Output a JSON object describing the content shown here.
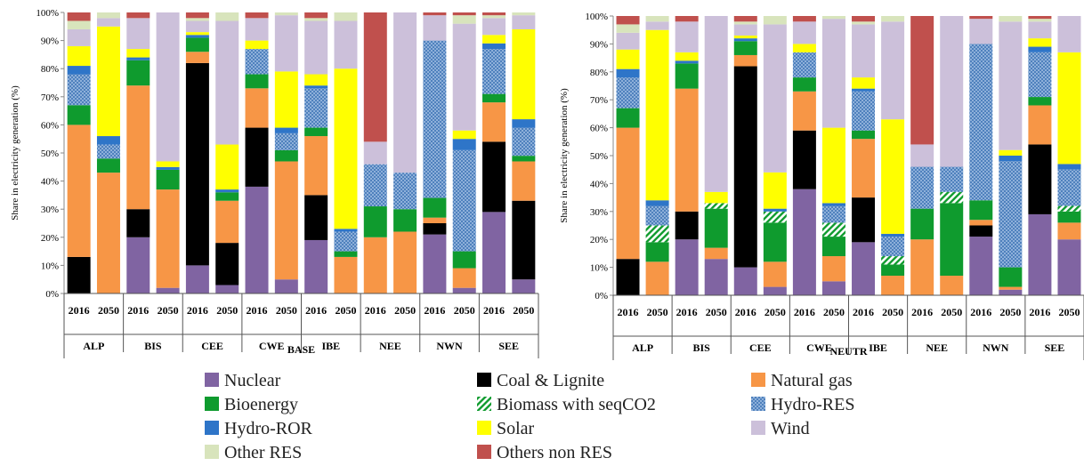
{
  "chart_data": {
    "type": "bar",
    "stacked": true,
    "ylabel": "Share in electricity generation (%)",
    "ylim": [
      0,
      100
    ],
    "y_ticks": [
      "0%",
      "10%",
      "20%",
      "30%",
      "40%",
      "50%",
      "60%",
      "70%",
      "80%",
      "90%",
      "100%"
    ],
    "legend_position": "bottom",
    "categories": [
      "2016",
      "2050",
      "2016",
      "2050",
      "2016",
      "2050",
      "2016",
      "2050",
      "2016",
      "2050",
      "2016",
      "2050",
      "2016",
      "2050",
      "2016",
      "2050"
    ],
    "groups": [
      "ALP",
      "BIS",
      "CEE",
      "CWE",
      "IBE",
      "NEE",
      "NWN",
      "SEE"
    ],
    "sources": [
      {
        "name": "Nuclear",
        "color": "#8064a2",
        "pattern": "none"
      },
      {
        "name": "Coal & Lignite",
        "color": "#000000",
        "pattern": "none"
      },
      {
        "name": "Natural gas",
        "color": "#f79646",
        "pattern": "none"
      },
      {
        "name": "Bioenergy",
        "color": "#0f9b2e",
        "pattern": "none"
      },
      {
        "name": "Biomass with seqCO2",
        "color": "#0f9b2e",
        "pattern": "diag"
      },
      {
        "name": "Hydro-RES",
        "color": "#4f81bd",
        "pattern": "dots"
      },
      {
        "name": "Hydro-ROR",
        "color": "#2e75c8",
        "pattern": "none"
      },
      {
        "name": "Solar",
        "color": "#ffff00",
        "pattern": "none"
      },
      {
        "name": "Wind",
        "color": "#ccc0da",
        "pattern": "none"
      },
      {
        "name": "Other RES",
        "color": "#d8e4bc",
        "pattern": "none"
      },
      {
        "name": "Others non RES",
        "color": "#c0504d",
        "pattern": "none"
      }
    ],
    "panels": [
      {
        "scenario": "BASE",
        "bars": [
          [
            0,
            13,
            47,
            7,
            0,
            11,
            3,
            7,
            6,
            3,
            3
          ],
          [
            0,
            0,
            43,
            5,
            0,
            5,
            3,
            39,
            3,
            2,
            0
          ],
          [
            20,
            10,
            44,
            9,
            0,
            0,
            1,
            3,
            11,
            0,
            2
          ],
          [
            2,
            0,
            35,
            7,
            0,
            0,
            1,
            2,
            53,
            0,
            0
          ],
          [
            10,
            72,
            4,
            5,
            0,
            0,
            1,
            1,
            4,
            1,
            2
          ],
          [
            3,
            15,
            15,
            3,
            0,
            0,
            1,
            16,
            44,
            3,
            0
          ],
          [
            38,
            21,
            14,
            5,
            0,
            9,
            0,
            3,
            8,
            0,
            2
          ],
          [
            5,
            0,
            42,
            4,
            0,
            6,
            2,
            20,
            20,
            1,
            0
          ],
          [
            19,
            16,
            21,
            3,
            0,
            14,
            1,
            4,
            19,
            1,
            2
          ],
          [
            0,
            0,
            13,
            2,
            0,
            7,
            1,
            57,
            17,
            3,
            0
          ],
          [
            0,
            0,
            20,
            11,
            0,
            15,
            0,
            0,
            8,
            0,
            46
          ],
          [
            0,
            0,
            22,
            8,
            0,
            13,
            0,
            0,
            57,
            0,
            0
          ],
          [
            21,
            4,
            2,
            7,
            0,
            56,
            0,
            0,
            9,
            0,
            1
          ],
          [
            2,
            0,
            7,
            6,
            0,
            36,
            4,
            3,
            38,
            3,
            1
          ],
          [
            29,
            25,
            14,
            3,
            0,
            16,
            2,
            3,
            6,
            1,
            1
          ],
          [
            5,
            28,
            14,
            2,
            0,
            10,
            3,
            32,
            5,
            1,
            0
          ]
        ]
      },
      {
        "scenario": "NEUTR",
        "bars": [
          [
            0,
            13,
            47,
            7,
            0,
            11,
            3,
            7,
            6,
            3,
            3
          ],
          [
            0,
            0,
            12,
            7,
            6,
            7,
            2,
            61,
            3,
            2,
            0
          ],
          [
            20,
            10,
            44,
            9,
            0,
            0,
            1,
            3,
            11,
            0,
            2
          ],
          [
            13,
            0,
            4,
            14,
            2,
            0,
            0,
            4,
            63,
            0,
            0
          ],
          [
            10,
            72,
            4,
            5,
            0,
            0,
            1,
            1,
            4,
            1,
            2
          ],
          [
            3,
            0,
            9,
            14,
            4,
            0,
            1,
            13,
            53,
            3,
            0
          ],
          [
            38,
            21,
            14,
            5,
            0,
            9,
            0,
            3,
            8,
            0,
            2
          ],
          [
            5,
            0,
            9,
            7,
            5,
            6,
            1,
            27,
            39,
            1,
            0
          ],
          [
            19,
            16,
            21,
            3,
            0,
            14,
            1,
            4,
            19,
            1,
            2
          ],
          [
            0,
            0,
            7,
            4,
            3,
            7,
            1,
            41,
            35,
            2,
            0
          ],
          [
            0,
            0,
            20,
            11,
            0,
            15,
            0,
            0,
            8,
            0,
            46
          ],
          [
            0,
            0,
            7,
            26,
            4,
            9,
            0,
            0,
            54,
            0,
            0
          ],
          [
            21,
            4,
            2,
            7,
            0,
            56,
            0,
            0,
            9,
            0,
            1
          ],
          [
            2,
            0,
            1,
            7,
            0,
            38,
            2,
            2,
            46,
            2,
            0
          ],
          [
            29,
            25,
            14,
            3,
            0,
            16,
            2,
            3,
            6,
            1,
            1
          ],
          [
            20,
            0,
            6,
            4,
            2,
            13,
            2,
            40,
            13,
            0,
            0
          ]
        ]
      }
    ]
  }
}
